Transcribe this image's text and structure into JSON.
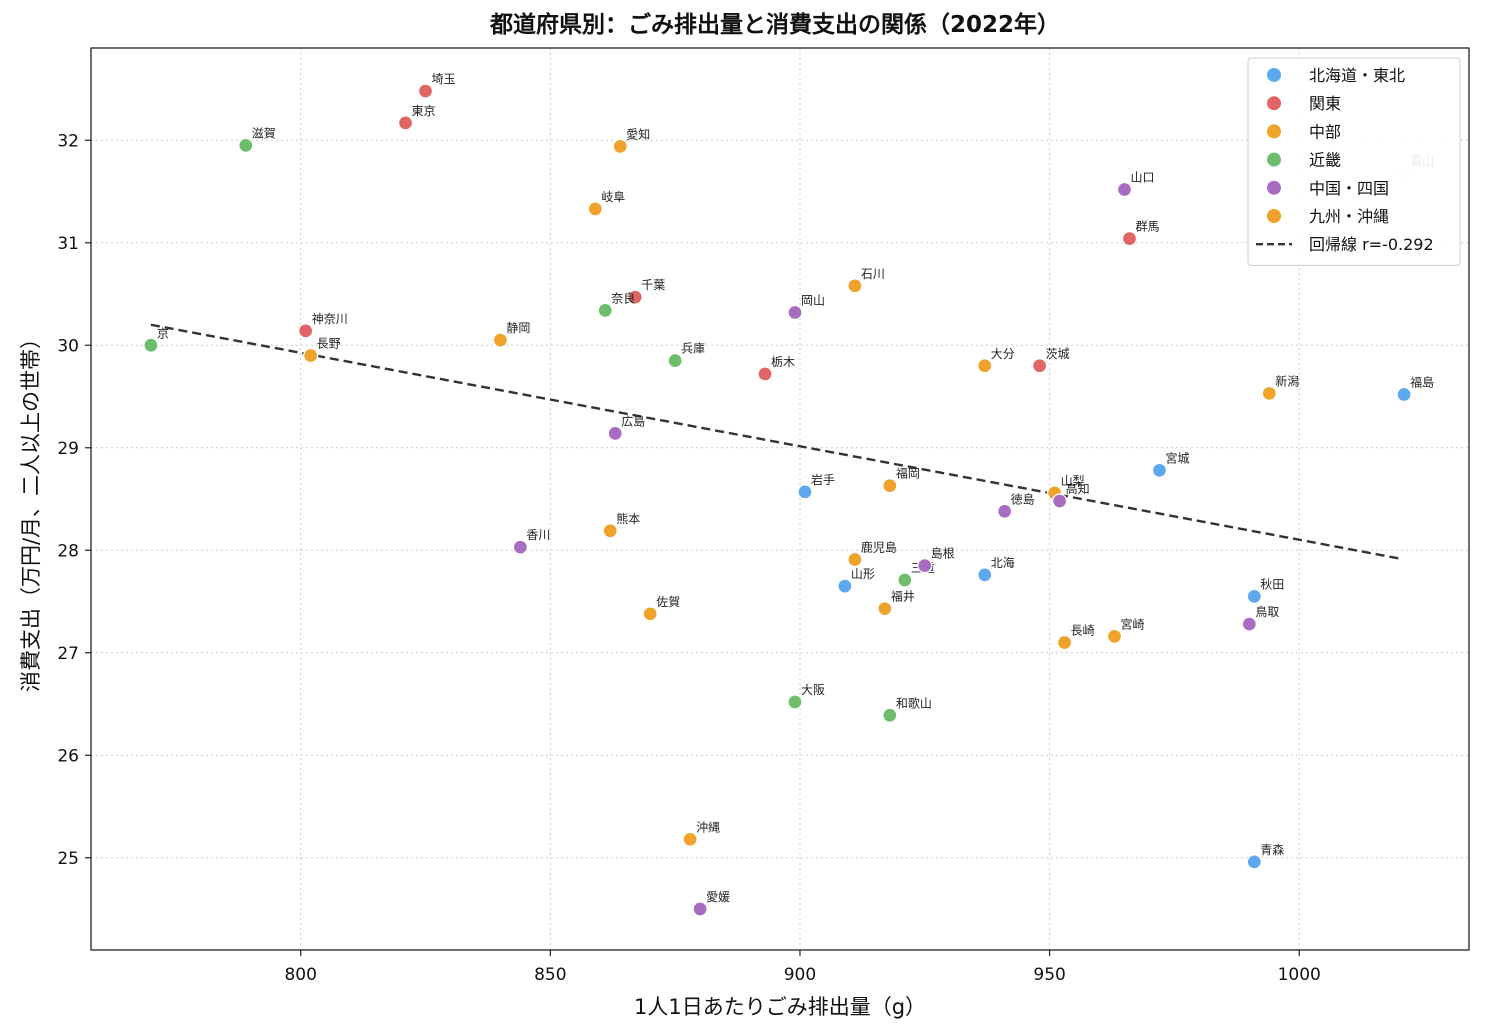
{
  "chart_data": {
    "type": "scatter",
    "title": "都道府県別：ごみ排出量と消費支出の関係（2022年）",
    "xlabel": "1人1日あたりごみ排出量（g）",
    "ylabel": "消費支出（万円/月、二人以上の世帯）",
    "xlim": [
      758,
      1034
    ],
    "ylim": [
      24.1,
      32.9
    ],
    "xticks": [
      800,
      850,
      900,
      950,
      1000
    ],
    "yticks": [
      25,
      26,
      27,
      28,
      29,
      30,
      31,
      32
    ],
    "grid": true,
    "legend_position": "top-right",
    "regression": {
      "label": "回帰線 r=-0.292",
      "x": [
        770,
        1020
      ],
      "y": [
        30.2,
        27.92
      ],
      "color": "#333333"
    },
    "series": [
      {
        "name": "北海道・東北",
        "color": "#5ea8ef",
        "points": [
          {
            "label": "北海",
            "x": 937,
            "y": 27.76
          },
          {
            "label": "青森",
            "x": 991,
            "y": 24.96
          },
          {
            "label": "岩手",
            "x": 901,
            "y": 28.57
          },
          {
            "label": "宮城",
            "x": 972,
            "y": 28.78
          },
          {
            "label": "秋田",
            "x": 991,
            "y": 27.55
          },
          {
            "label": "山形",
            "x": 909,
            "y": 27.65
          },
          {
            "label": "福島",
            "x": 1021,
            "y": 29.52
          }
        ]
      },
      {
        "name": "関東",
        "color": "#e06666",
        "points": [
          {
            "label": "埼玉",
            "x": 825,
            "y": 32.48
          },
          {
            "label": "東京",
            "x": 821,
            "y": 32.17
          },
          {
            "label": "神奈川",
            "x": 801,
            "y": 30.14
          },
          {
            "label": "千葉",
            "x": 867,
            "y": 30.47
          },
          {
            "label": "栃木",
            "x": 893,
            "y": 29.72
          },
          {
            "label": "茨城",
            "x": 948,
            "y": 29.8
          },
          {
            "label": "群馬",
            "x": 966,
            "y": 31.04
          }
        ]
      },
      {
        "name": "中部",
        "color": "#f0a32a",
        "points": [
          {
            "label": "愛知",
            "x": 864,
            "y": 31.94
          },
          {
            "label": "岐阜",
            "x": 859,
            "y": 31.33
          },
          {
            "label": "石川",
            "x": 911,
            "y": 30.58
          },
          {
            "label": "静岡",
            "x": 840,
            "y": 30.05
          },
          {
            "label": "長野",
            "x": 802,
            "y": 29.9
          },
          {
            "label": "新潟",
            "x": 994,
            "y": 29.53
          },
          {
            "label": "山梨",
            "x": 951,
            "y": 28.56
          },
          {
            "label": "福井",
            "x": 917,
            "y": 27.43
          }
        ]
      },
      {
        "name": "近畿",
        "color": "#6dbd6d",
        "points": [
          {
            "label": "滋賀",
            "x": 789,
            "y": 31.95
          },
          {
            "label": "京",
            "x": 770,
            "y": 30.0
          },
          {
            "label": "奈良",
            "x": 861,
            "y": 30.34
          },
          {
            "label": "兵庫",
            "x": 875,
            "y": 29.85
          },
          {
            "label": "三重",
            "x": 921,
            "y": 27.71
          },
          {
            "label": "大阪",
            "x": 899,
            "y": 26.52
          },
          {
            "label": "和歌山",
            "x": 918,
            "y": 26.39
          }
        ]
      },
      {
        "name": "中国・四国",
        "color": "#a86cc1",
        "points": [
          {
            "label": "山口",
            "x": 965,
            "y": 31.52
          },
          {
            "label": "岡山",
            "x": 899,
            "y": 30.32
          },
          {
            "label": "広島",
            "x": 863,
            "y": 29.14
          },
          {
            "label": "徳島",
            "x": 941,
            "y": 28.38
          },
          {
            "label": "高知",
            "x": 952,
            "y": 28.48
          },
          {
            "label": "香川",
            "x": 844,
            "y": 28.03
          },
          {
            "label": "島根",
            "x": 925,
            "y": 27.85
          },
          {
            "label": "鳥取",
            "x": 990,
            "y": 27.28
          },
          {
            "label": "愛媛",
            "x": 880,
            "y": 24.5
          }
        ]
      },
      {
        "name": "九州・沖縄",
        "color": "#f0a32a",
        "points": [
          {
            "label": "大分",
            "x": 937,
            "y": 29.8
          },
          {
            "label": "福岡",
            "x": 918,
            "y": 28.63
          },
          {
            "label": "熊本",
            "x": 862,
            "y": 28.19
          },
          {
            "label": "鹿児島",
            "x": 911,
            "y": 27.91
          },
          {
            "label": "佐賀",
            "x": 870,
            "y": 27.38
          },
          {
            "label": "長崎",
            "x": 953,
            "y": 27.1
          },
          {
            "label": "宮崎",
            "x": 963,
            "y": 27.16
          },
          {
            "label": "沖縄",
            "x": 878,
            "y": 25.18
          }
        ]
      }
    ],
    "extra_points": [
      {
        "label": "富山",
        "x": 1021,
        "y": 31.68,
        "color": "#fbf3e0",
        "label_color": "#e8e0d0"
      }
    ]
  }
}
